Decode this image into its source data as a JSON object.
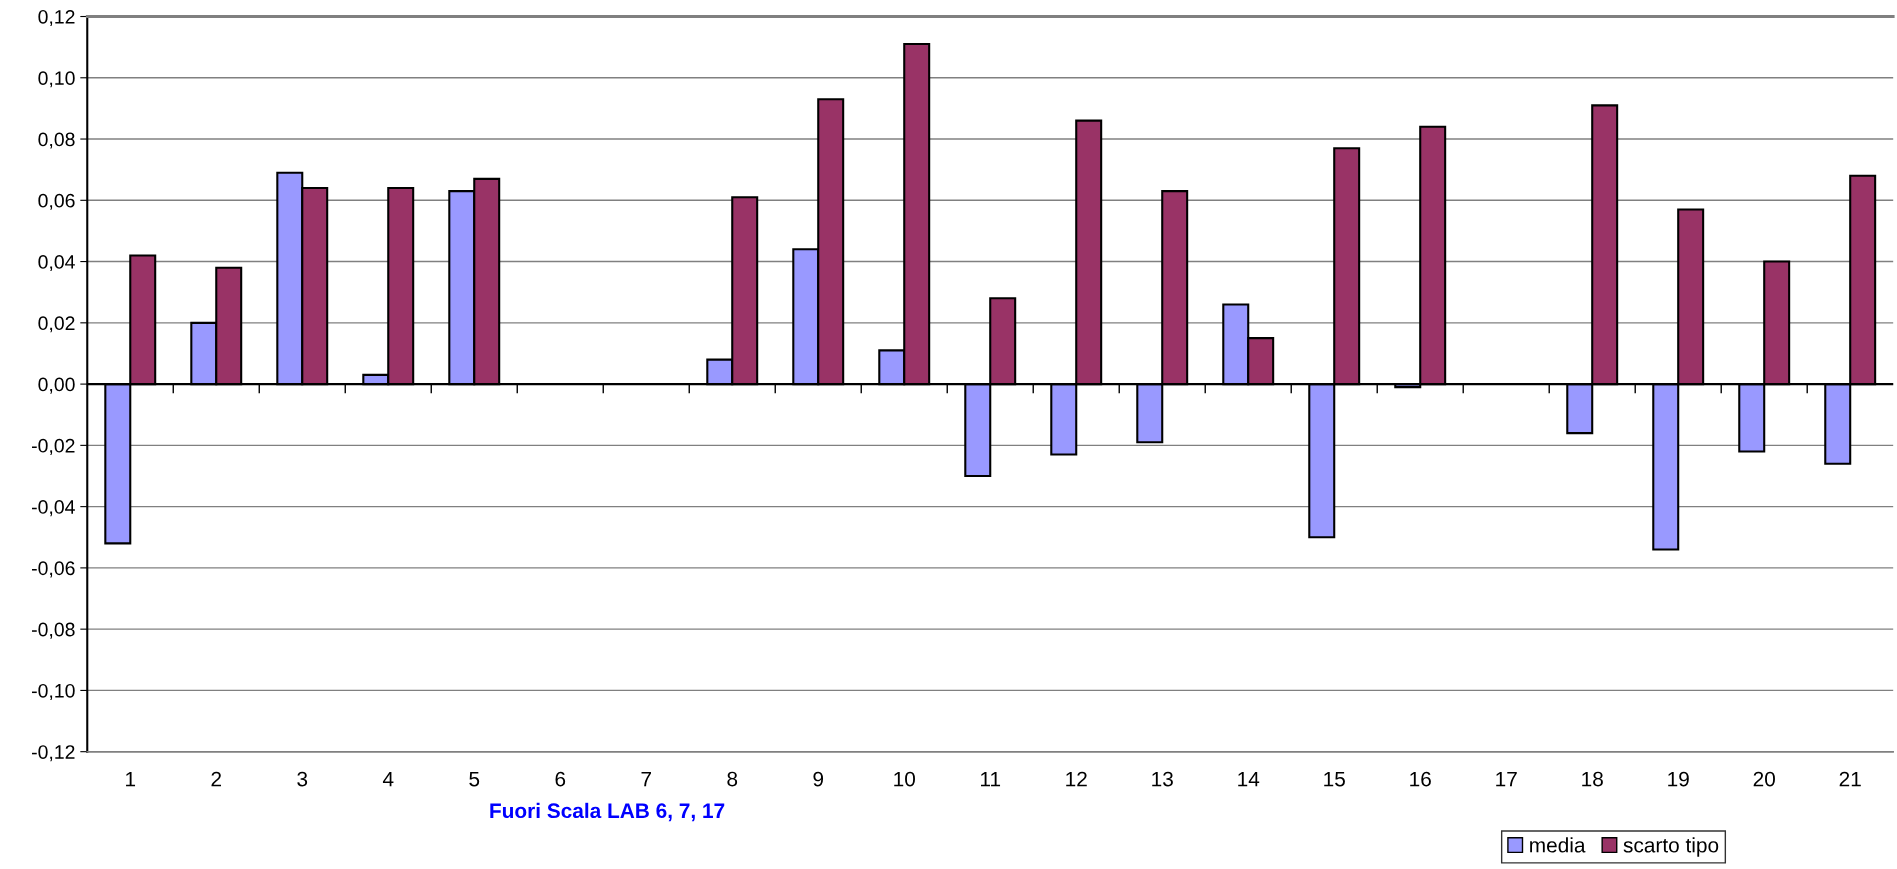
{
  "chart_data": {
    "type": "bar",
    "categories": [
      "1",
      "2",
      "3",
      "4",
      "5",
      "6",
      "7",
      "8",
      "9",
      "10",
      "11",
      "12",
      "13",
      "14",
      "15",
      "16",
      "17",
      "18",
      "19",
      "20",
      "21"
    ],
    "series": [
      {
        "name": "media",
        "color": "#9999ff",
        "values": [
          -0.052,
          0.02,
          0.069,
          0.003,
          0.063,
          null,
          null,
          0.008,
          0.044,
          0.011,
          -0.03,
          -0.023,
          -0.019,
          0.026,
          -0.05,
          -0.001,
          null,
          -0.016,
          -0.054,
          -0.022,
          -0.026
        ]
      },
      {
        "name": "scarto tipo",
        "color": "#993366",
        "values": [
          0.042,
          0.038,
          0.064,
          0.064,
          0.067,
          null,
          null,
          0.061,
          0.093,
          0.111,
          0.028,
          0.086,
          0.063,
          0.015,
          0.077,
          0.084,
          null,
          0.091,
          0.057,
          0.04,
          0.068
        ]
      }
    ],
    "ylim": [
      -0.12,
      0.12
    ],
    "yticks": [
      {
        "value": -0.12,
        "label": "-0,12"
      },
      {
        "value": -0.1,
        "label": "-0,10"
      },
      {
        "value": -0.08,
        "label": "-0,08"
      },
      {
        "value": -0.06,
        "label": "-0,06"
      },
      {
        "value": -0.04,
        "label": "-0,04"
      },
      {
        "value": -0.02,
        "label": "-0,02"
      },
      {
        "value": 0,
        "label": "0,00"
      },
      {
        "value": 0.02,
        "label": "0,02"
      },
      {
        "value": 0.04,
        "label": "0,04"
      },
      {
        "value": 0.06,
        "label": "0,06"
      },
      {
        "value": 0.08,
        "label": "0,08"
      },
      {
        "value": 0.1,
        "label": "0,10"
      },
      {
        "value": 0.12,
        "label": "0,12"
      }
    ],
    "grid": "y",
    "legend": "bottom right",
    "annotations": [
      "Fuori Scala LAB 6, 7, 17"
    ]
  }
}
